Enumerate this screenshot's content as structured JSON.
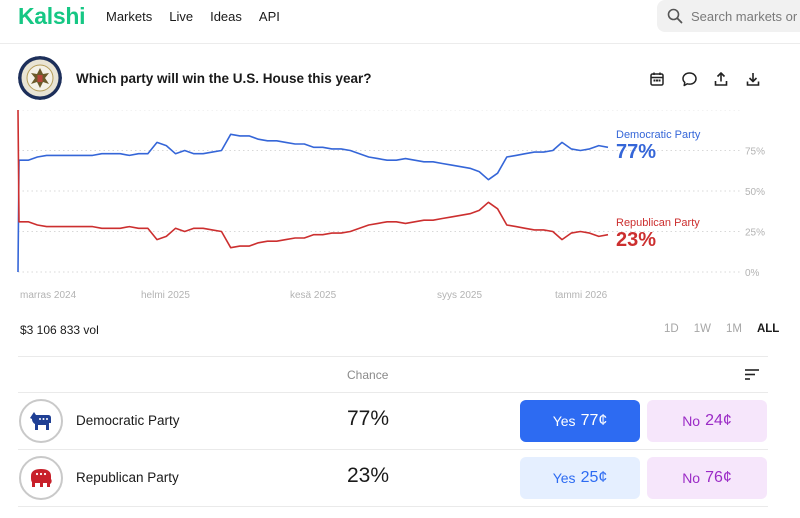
{
  "nav": {
    "logo": "Kalshi",
    "items": [
      "Markets",
      "Live",
      "Ideas",
      "API"
    ],
    "search_placeholder": "Search markets or"
  },
  "header": {
    "question": "Which party will win the U.S. House this year?",
    "seal_label": "U.S. House of Representatives seal",
    "actions": [
      "calendar-icon",
      "comment-icon",
      "share-icon",
      "download-icon"
    ]
  },
  "colors": {
    "brand": "#16c784",
    "democratic": "#3566d8",
    "republican": "#cc2f2f",
    "yes_button": "#2d6bf2",
    "no_button_text": "#9b2bc6"
  },
  "chart_data": {
    "type": "line",
    "x_ticks": [
      "marras 2024",
      "helmi 2025",
      "kesä 2025",
      "syys 2025",
      "tammi 2026"
    ],
    "y_ticks": [
      "75%",
      "50%",
      "25%",
      "0%"
    ],
    "ylim": [
      0,
      100
    ],
    "grid": true,
    "series": [
      {
        "name": "Democratic Party",
        "color": "#3566d8",
        "last_value_label": "77%",
        "values": [
          0,
          69,
          69,
          71,
          72,
          72,
          72,
          72,
          72,
          72,
          73,
          73,
          73,
          72,
          73,
          73,
          80,
          78,
          73,
          75,
          73,
          73,
          74,
          75,
          85,
          84,
          84,
          82,
          81,
          81,
          80,
          79,
          79,
          77,
          77,
          76,
          76,
          75,
          73,
          71,
          70,
          69,
          69,
          70,
          69,
          68,
          68,
          67,
          66,
          65,
          64,
          62,
          57,
          61,
          71,
          72,
          73,
          74,
          74,
          75,
          80,
          76,
          75,
          76,
          78,
          77
        ]
      },
      {
        "name": "Republican Party",
        "color": "#cc2f2f",
        "last_value_label": "23%",
        "values": [
          100,
          31,
          31,
          29,
          28,
          28,
          28,
          28,
          28,
          28,
          27,
          27,
          27,
          28,
          27,
          27,
          20,
          22,
          27,
          25,
          27,
          27,
          26,
          25,
          15,
          16,
          16,
          18,
          19,
          19,
          20,
          21,
          21,
          23,
          23,
          24,
          24,
          25,
          27,
          29,
          30,
          31,
          31,
          30,
          31,
          32,
          32,
          33,
          34,
          35,
          36,
          38,
          43,
          39,
          29,
          28,
          27,
          26,
          26,
          25,
          20,
          24,
          25,
          24,
          22,
          23
        ]
      }
    ]
  },
  "summary": {
    "volume": "$3 106 833 vol",
    "ranges": [
      "1D",
      "1W",
      "1M",
      "ALL"
    ],
    "active_range": "ALL"
  },
  "table": {
    "chance_header": "Chance",
    "rows": [
      {
        "name": "Democratic Party",
        "chance": "77%",
        "yes_label": "Yes",
        "yes_price": "77¢",
        "no_label": "No",
        "no_price": "24¢",
        "icon": "donkey-icon"
      },
      {
        "name": "Republican Party",
        "chance": "23%",
        "yes_label": "Yes",
        "yes_price": "25¢",
        "no_label": "No",
        "no_price": "76¢",
        "icon": "elephant-icon"
      }
    ]
  }
}
